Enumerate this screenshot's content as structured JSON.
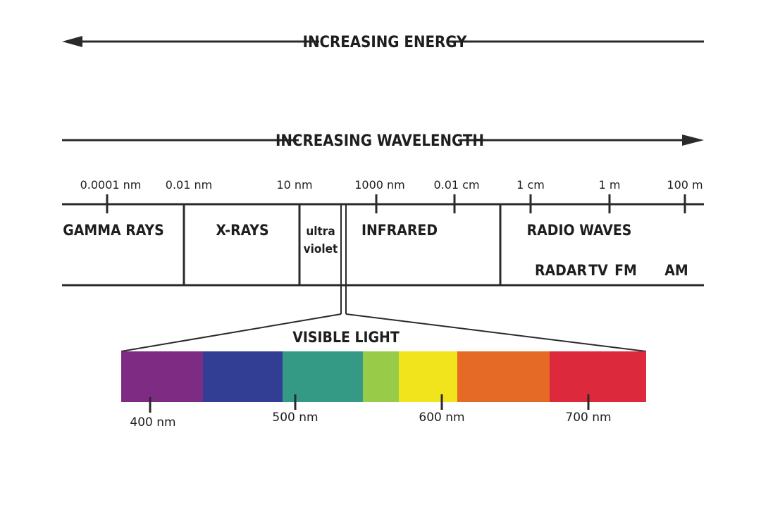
{
  "energy_arrow": {
    "label": "INCREASING ENERGY",
    "direction": "left"
  },
  "wavelength_arrow": {
    "label": "INCREASING WAVELENGTH",
    "direction": "right"
  },
  "scale_labels": [
    "0.0001 nm",
    "0.01 nm",
    "10 nm",
    "1000 nm",
    "0.01 cm",
    "1 cm",
    "1 m",
    "100 m"
  ],
  "regions": {
    "gamma": "GAMMA RAYS",
    "xrays": "X-RAYS",
    "uv_line1": "ultra",
    "uv_line2": "violet",
    "infrared": "INFRARED",
    "radio": "RADIO WAVES"
  },
  "radio_sub": [
    "RADAR",
    "TV",
    "FM",
    "AM"
  ],
  "visible": {
    "title": "VISIBLE LIGHT",
    "bands": [
      {
        "color": "#7e2b83"
      },
      {
        "color": "#323e93"
      },
      {
        "color": "#349a86"
      },
      {
        "color": "#98cb48"
      },
      {
        "color": "#f2e41c"
      },
      {
        "color": "#e56a25"
      },
      {
        "color": "#dc2a3c"
      }
    ],
    "tick_labels": [
      "400 nm",
      "500 nm",
      "600 nm",
      "700 nm"
    ]
  }
}
